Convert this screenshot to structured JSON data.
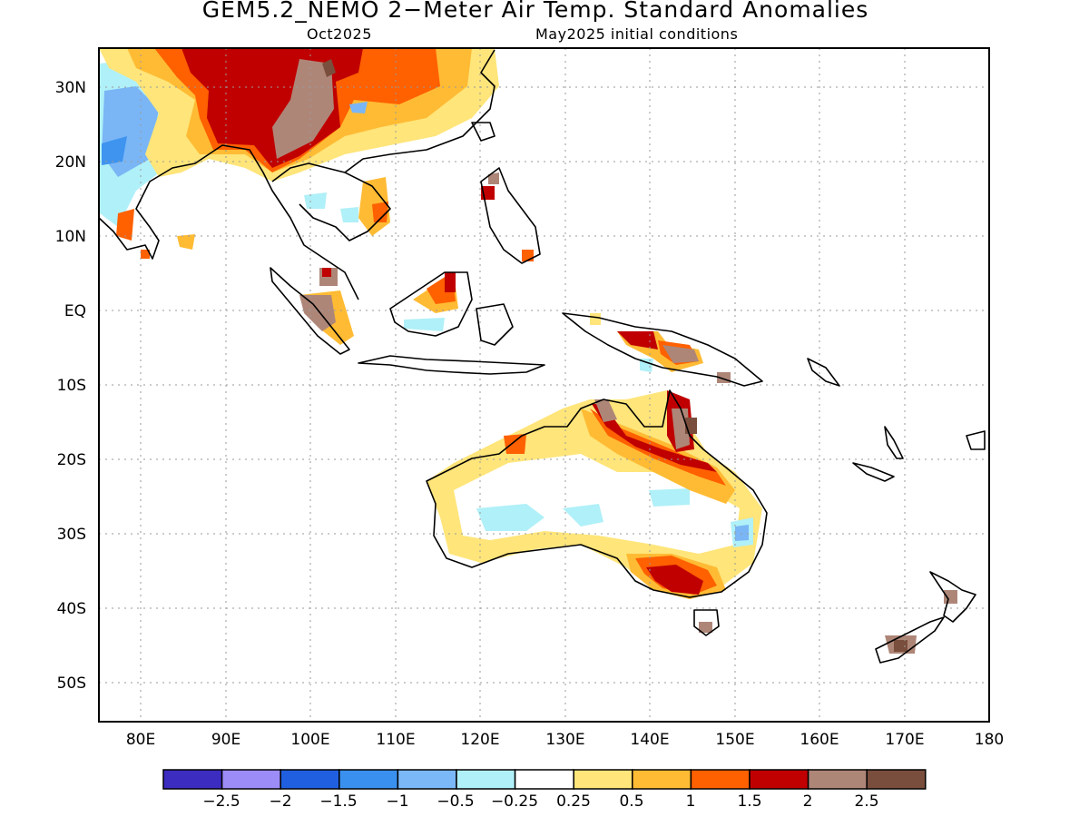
{
  "header": {
    "title": "GEM5.2_NEMO 2−Meter Air Temp. Standard Anomalies",
    "valid_month": "Oct2025",
    "init_conditions": "May2025 initial conditions"
  },
  "map": {
    "lon_range": [
      75,
      180
    ],
    "lat_range": [
      -55,
      35
    ],
    "lon_ticks": [
      "80E",
      "90E",
      "100E",
      "110E",
      "120E",
      "130E",
      "140E",
      "150E",
      "160E",
      "170E",
      "180"
    ],
    "lat_ticks": [
      "30N",
      "20N",
      "10N",
      "EQ",
      "10S",
      "20S",
      "30S",
      "40S",
      "50S"
    ],
    "grid": "dotted",
    "colors": {
      "bg": "#ffffff",
      "coast": "#000000",
      "t_neg_025": "#b0f0f8",
      "t_neg_05": "#7ab6f5",
      "t_neg_1": "#3e94ef",
      "t_025": "#ffe57a",
      "t_05": "#ffbb34",
      "t_1": "#ff6000",
      "t_15": "#c00000",
      "t_2": "#ae8678",
      "t_25": "#7a4e3c"
    }
  },
  "legend": {
    "labels": [
      "−2.5",
      "−2",
      "−1.5",
      "−1",
      "−0.5",
      "−0.25",
      "0.25",
      "0.5",
      "1",
      "1.5",
      "2",
      "2.5"
    ],
    "colors": [
      "#3c2cc0",
      "#9c8cf8",
      "#2060e0",
      "#3a90ee",
      "#7ab8f8",
      "#b0f0f8",
      "#ffffff",
      "#ffe57a",
      "#ffbb34",
      "#ff6000",
      "#c00000",
      "#ae8678",
      "#7a4e3c"
    ]
  }
}
